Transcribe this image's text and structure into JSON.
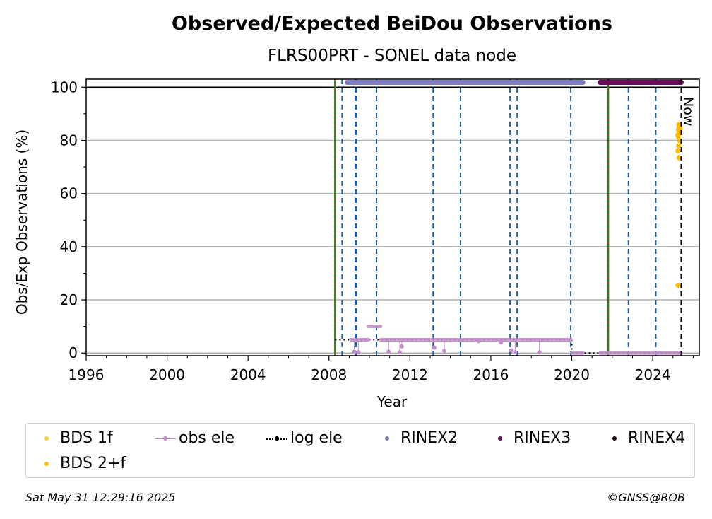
{
  "chart_data": {
    "type": "scatter",
    "title": "Observed/Expected BeiDou Observations",
    "subtitle": "FLRS00PRT - SONEL data node",
    "xlabel": "Year",
    "ylabel": "Obs/Exp Observations (%)",
    "xlim": [
      1996,
      2026.3
    ],
    "ylim": [
      -1,
      103
    ],
    "xticks": [
      1996,
      2000,
      2004,
      2008,
      2012,
      2016,
      2020,
      2024
    ],
    "yticks": [
      0,
      20,
      40,
      60,
      80,
      100
    ],
    "grid": "horizontal",
    "now_label": "Now",
    "now_x": 2025.41,
    "event_lines": {
      "green_red": [
        2008.3,
        2021.8
      ],
      "blue_dashed": [
        2008.65,
        2009.3,
        2009.35,
        2010.35,
        2013.15,
        2014.5,
        2016.95,
        2017.3,
        2019.95,
        2022.8,
        2024.15
      ]
    },
    "rinex2": {
      "x_start": 2008.9,
      "x_end": 2020.55,
      "y": 101.8
    },
    "rinex3": {
      "x_start": 2021.4,
      "x_end": 2025.41,
      "y": 101.8
    },
    "log_ele": [
      {
        "x_start": 2008.3,
        "x_end": 2020.0,
        "y": 5
      },
      {
        "x_start": 2020.0,
        "x_end": 2025.41,
        "y": 0
      }
    ],
    "obs_ele": [
      {
        "x_start": 2009.1,
        "x_end": 2009.95,
        "y": 5
      },
      {
        "x_start": 2009.95,
        "x_end": 2010.55,
        "y": 10
      },
      {
        "x_start": 2010.55,
        "x_end": 2019.95,
        "y": 5
      },
      {
        "x_start": 2020.0,
        "x_end": 2020.55,
        "y": 0
      },
      {
        "x_start": 2021.4,
        "x_end": 2025.41,
        "y": 0
      }
    ],
    "obs_ele_points": [
      {
        "x": 2009.25,
        "y": 0.5
      },
      {
        "x": 2009.45,
        "y": 0.3
      },
      {
        "x": 2010.95,
        "y": 0.5
      },
      {
        "x": 2011.5,
        "y": 0.3
      },
      {
        "x": 2011.6,
        "y": 2.5
      },
      {
        "x": 2013.2,
        "y": 2
      },
      {
        "x": 2013.7,
        "y": 0.8
      },
      {
        "x": 2015.4,
        "y": 4.5
      },
      {
        "x": 2016.5,
        "y": 4
      },
      {
        "x": 2017.0,
        "y": 1
      },
      {
        "x": 2017.2,
        "y": 0.3
      },
      {
        "x": 2018.4,
        "y": 0.3
      }
    ],
    "bds_2f_points": [
      {
        "x": 2025.25,
        "y": 25.5
      },
      {
        "x": 2025.3,
        "y": 73.5
      },
      {
        "x": 2025.25,
        "y": 76
      },
      {
        "x": 2025.28,
        "y": 78
      },
      {
        "x": 2025.32,
        "y": 80
      },
      {
        "x": 2025.26,
        "y": 81.5
      },
      {
        "x": 2025.3,
        "y": 82.5
      },
      {
        "x": 2025.34,
        "y": 83
      },
      {
        "x": 2025.27,
        "y": 84
      },
      {
        "x": 2025.31,
        "y": 85
      },
      {
        "x": 2025.29,
        "y": 86
      },
      {
        "x": 2025.33,
        "y": 83.5
      },
      {
        "x": 2025.24,
        "y": 82
      },
      {
        "x": 2025.36,
        "y": 84.5
      }
    ],
    "legend": [
      {
        "label": "BDS 1f",
        "color": "#ffcc33",
        "kind": "dot"
      },
      {
        "label": "obs ele",
        "color": "#c38ec9",
        "kind": "line-dot"
      },
      {
        "label": "log ele",
        "color": "#000000",
        "kind": "dotted-line"
      },
      {
        "label": "RINEX2",
        "color": "#7b7bbd",
        "kind": "dot"
      },
      {
        "label": "RINEX3",
        "color": "#6a0a5a",
        "kind": "dot"
      },
      {
        "label": "RINEX4",
        "color": "#1a0010",
        "kind": "dot"
      },
      {
        "label": "BDS 2+f",
        "color": "#ffbb00",
        "kind": "dot"
      }
    ],
    "colors": {
      "green": "#1a8a1a",
      "red": "#d62728",
      "blue": "#1f5fa8",
      "grid": "#b0b0b0",
      "rinex2": "#7b7bbd",
      "rinex3": "#6a0a5a",
      "obs_ele": "#c38ec9",
      "bds2f": "#ffbb00"
    }
  },
  "footer": {
    "timestamp": "Sat May 31 12:29:16 2025",
    "credit": "©GNSS@ROB"
  }
}
